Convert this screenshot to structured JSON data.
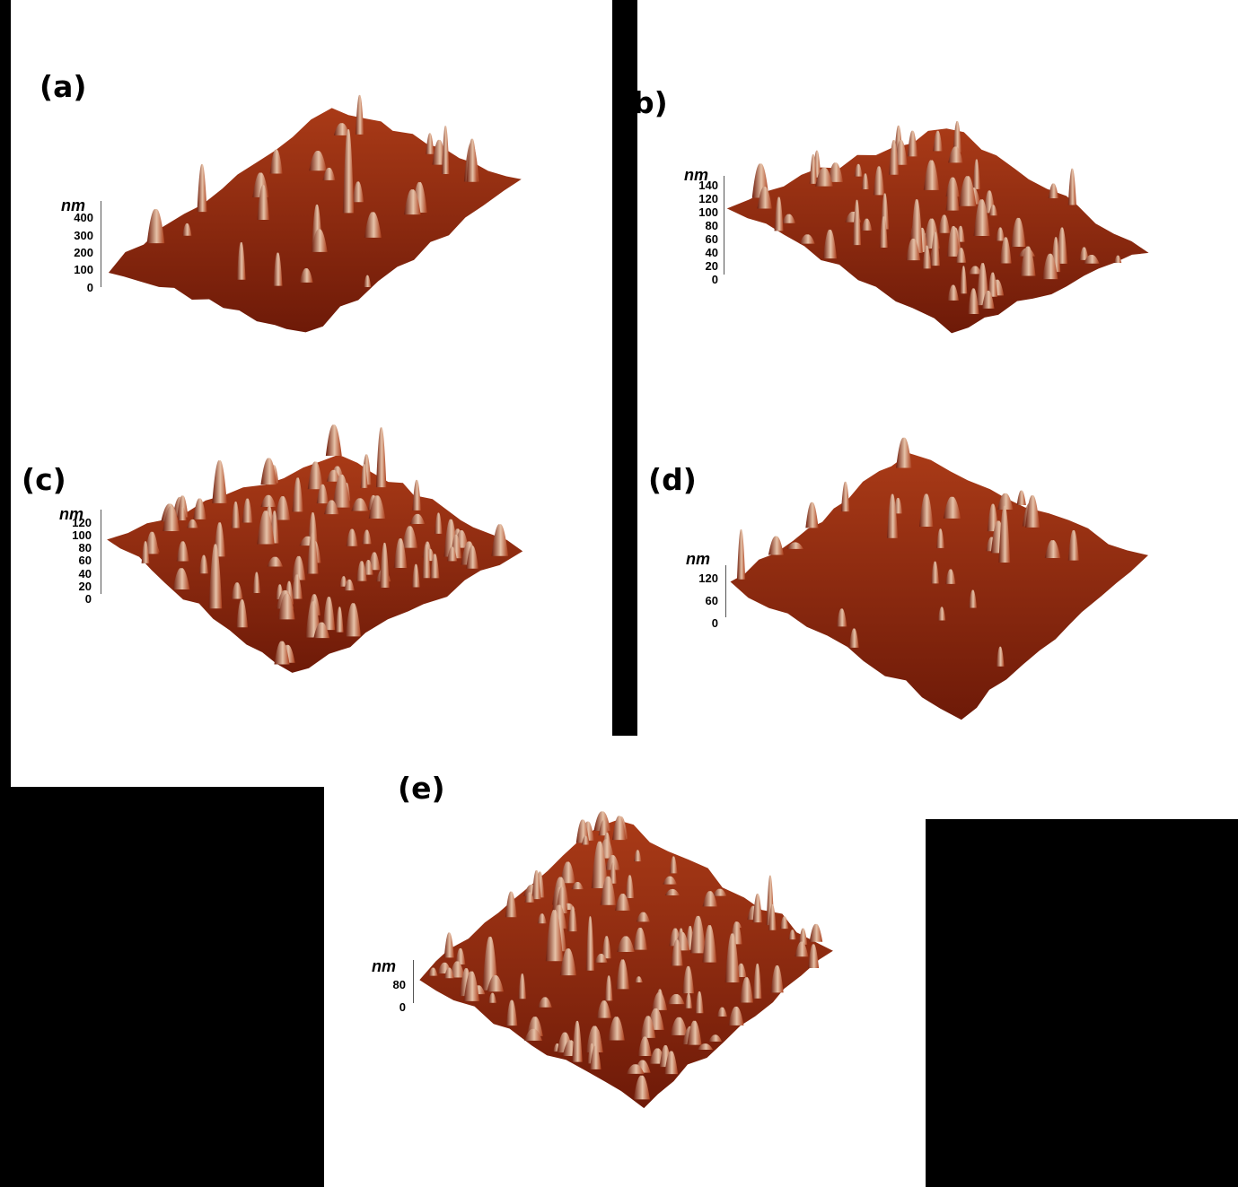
{
  "figure": {
    "panels": [
      {
        "label": "(a)",
        "unit": "nm",
        "ticks": [
          "400",
          "300",
          "200",
          "100",
          "0"
        ]
      },
      {
        "label": "b)",
        "unit": "nm",
        "ticks": [
          "140",
          "120",
          "100",
          "80",
          "60",
          "40",
          "20",
          "0"
        ]
      },
      {
        "label": "(c)",
        "unit": "nm",
        "ticks": [
          "120",
          "100",
          "80",
          "60",
          "40",
          "20",
          "0"
        ]
      },
      {
        "label": "(d)",
        "unit": "nm",
        "ticks": [
          "120",
          "60",
          "0"
        ]
      },
      {
        "label": "(e)",
        "unit": "nm",
        "ticks": [
          "80",
          "0"
        ]
      }
    ]
  },
  "colors": {
    "surface_dark": "#6e1a08",
    "surface_mid": "#a93a17",
    "surface_light": "#e6c2a8",
    "background": "#ffffff",
    "mask": "#000000"
  }
}
